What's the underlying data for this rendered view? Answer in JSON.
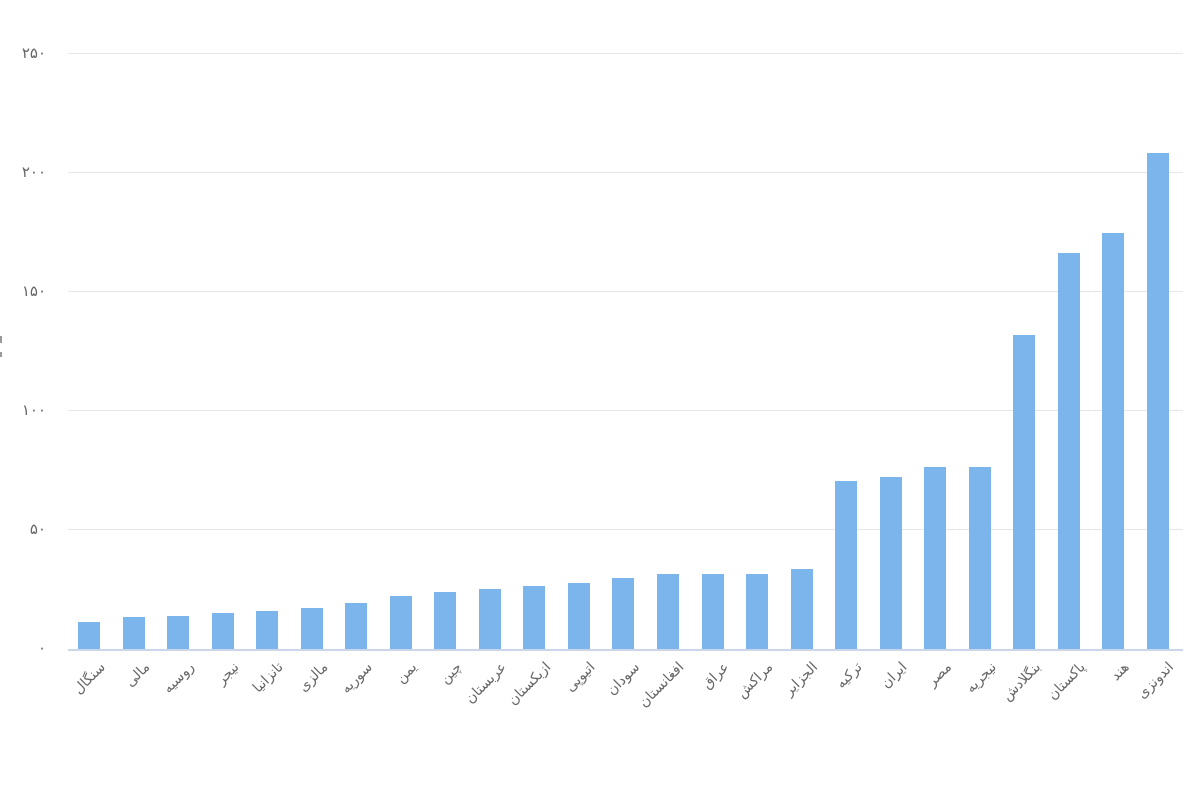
{
  "chart_data": {
    "type": "bar",
    "title": "",
    "xlabel": "",
    "ylabel": "",
    "legend": "none",
    "grid": "horizontal",
    "bar_color": "#7cb5ec",
    "axis_line_color": "#ccd6eb",
    "gridline_color": "#e6e6e6",
    "label_color": "#666666",
    "ylim": [
      0,
      250
    ],
    "y_ticks": [
      {
        "value": 0,
        "label": "۰"
      },
      {
        "value": 50,
        "label": "۵۰"
      },
      {
        "value": 100,
        "label": "۱۰۰"
      },
      {
        "value": 150,
        "label": "۱۵۰"
      },
      {
        "value": 200,
        "label": "۲۰۰"
      },
      {
        "value": 250,
        "label": "۲۵۰"
      }
    ],
    "categories": [
      "سنگال",
      "مالی",
      "روسیه",
      "نیجر",
      "تانزانیا",
      "مالزی",
      "سوریه",
      "یمن",
      "چین",
      "عربستان",
      "ازبکستان",
      "اتیوپی",
      "سودان",
      "افغانستان",
      "عراق",
      "مراکش",
      "الجزایر",
      "ترکیه",
      "ایران",
      "مصر",
      "نیجریه",
      "بنگلادش",
      "پاکستان",
      "هند",
      "اندونزی"
    ],
    "values": [
      11,
      13,
      13.5,
      14.5,
      15.5,
      17,
      19,
      22,
      23.5,
      25,
      26,
      27.5,
      29.5,
      31,
      31,
      31,
      33,
      70,
      72,
      76,
      76,
      131.5,
      166,
      174.5,
      208
    ],
    "y_axis_title_clipped_at_left_edge": true
  }
}
